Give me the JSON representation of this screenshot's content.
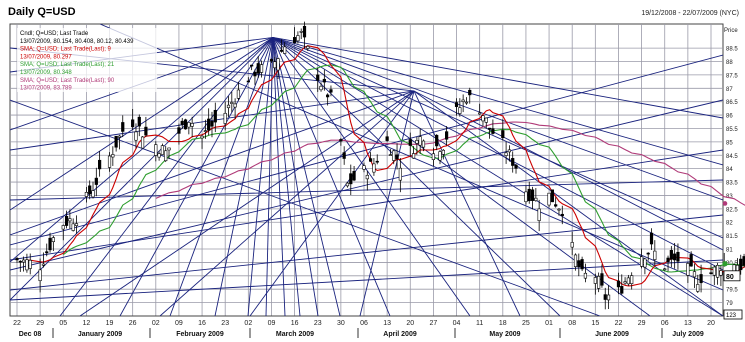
{
  "header": {
    "title": "Daily Q=USD",
    "date_range": "19/12/2008 - 22/07/2009 (NYC)"
  },
  "legend": [
    {
      "label": "Cndl; Q=USD; Last Trade",
      "color": "#000000"
    },
    {
      "label": "13/07/2009, 80.154, 80.408, 80.12, 80.439",
      "color": "#000000"
    },
    {
      "label": "SMA; Q=USD; Last Trade(Last); 9",
      "color": "#cc0000"
    },
    {
      "label": "13/07/2009, 80.297",
      "color": "#cc0000"
    },
    {
      "label": "SMA; Q=USD; Last Trade(Last); 21",
      "color": "#2e9e2e"
    },
    {
      "label": "13/07/2009, 80.348",
      "color": "#2e9e2e"
    },
    {
      "label": "SMA; Q=USD; Last Trade(Last); 90",
      "color": "#b03a78"
    },
    {
      "label": "13/07/2009, 83.789",
      "color": "#b03a78"
    }
  ],
  "colors": {
    "candle": "#000000",
    "sma9": "#cc0000",
    "sma21": "#2e9e2e",
    "sma90": "#b03a78",
    "fan_lines": "#1a237e",
    "grid": "#9a9aa8",
    "background": "#ffffff"
  },
  "chart_data": {
    "type": "candlestick",
    "title": "Daily Q=USD",
    "ylabel": "Price",
    "y_unit": "Price",
    "ylim": [
      78.5,
      89.4
    ],
    "grid": true,
    "y_ticks": [
      "79",
      "79.5",
      "80",
      "80.5",
      "81",
      "81.5",
      "82",
      "82.5",
      "83",
      "83.5",
      "84",
      "84.5",
      "85",
      "85.5",
      "86",
      "86.5",
      "87",
      "87.5",
      "88",
      "88.5"
    ],
    "x_ticks": [
      "22",
      "29",
      "05",
      "12",
      "19",
      "26",
      "02",
      "09",
      "16",
      "23",
      "02",
      "09",
      "16",
      "23",
      "30",
      "06",
      "13",
      "20",
      "27",
      "04",
      "11",
      "18",
      "25",
      "01",
      "08",
      "15",
      "22",
      "29",
      "06",
      "13",
      "20"
    ],
    "month_labels": [
      "Dec 08",
      "January 2009",
      "February 2009",
      "March 2009",
      "April 2009",
      "May 2009",
      "June 2009",
      "July 2009"
    ],
    "last_value": "80",
    "scale_badge": "123",
    "series": [
      {
        "name": "SMA; Q=USD; Last Trade(Last); 9",
        "last": 80.297
      },
      {
        "name": "SMA; Q=USD; Last Trade(Last); 21",
        "last": 80.348
      },
      {
        "name": "SMA; Q=USD; Last Trade(Last); 90",
        "last": 83.789
      }
    ],
    "last_candle": {
      "date": "13/07/2009",
      "open": 80.154,
      "high": 80.408,
      "low": 80.12,
      "close": 80.439
    },
    "anchors": [
      {
        "d": 0,
        "v": 80.6
      },
      {
        "d": 7,
        "v": 80.4
      },
      {
        "d": 13,
        "v": 81.9
      },
      {
        "d": 18,
        "v": 82.2
      },
      {
        "d": 27,
        "v": 84.2
      },
      {
        "d": 34,
        "v": 85.9
      },
      {
        "d": 40,
        "v": 85.1
      },
      {
        "d": 45,
        "v": 84.6
      },
      {
        "d": 52,
        "v": 85.9
      },
      {
        "d": 56,
        "v": 85.2
      },
      {
        "d": 63,
        "v": 86.1
      },
      {
        "d": 71,
        "v": 87.6
      },
      {
        "d": 77,
        "v": 87.8
      },
      {
        "d": 82,
        "v": 88.8
      },
      {
        "d": 86,
        "v": 89.0
      },
      {
        "d": 92,
        "v": 87.2
      },
      {
        "d": 95,
        "v": 86.6
      },
      {
        "d": 98,
        "v": 85.0
      },
      {
        "d": 100,
        "v": 83.4
      },
      {
        "d": 104,
        "v": 83.8
      },
      {
        "d": 108,
        "v": 84.2
      },
      {
        "d": 112,
        "v": 85.0
      },
      {
        "d": 116,
        "v": 84.2
      },
      {
        "d": 123,
        "v": 85.3
      },
      {
        "d": 126,
        "v": 84.8
      },
      {
        "d": 129,
        "v": 84.9
      },
      {
        "d": 133,
        "v": 86.1
      },
      {
        "d": 136,
        "v": 86.7
      },
      {
        "d": 140,
        "v": 86.3
      },
      {
        "d": 143,
        "v": 85.5
      },
      {
        "d": 147,
        "v": 84.9
      },
      {
        "d": 151,
        "v": 84.1
      },
      {
        "d": 154,
        "v": 83.2
      },
      {
        "d": 158,
        "v": 82.7
      },
      {
        "d": 161,
        "v": 83.0
      },
      {
        "d": 165,
        "v": 82.5
      },
      {
        "d": 168,
        "v": 81.0
      },
      {
        "d": 171,
        "v": 80.0
      },
      {
        "d": 175,
        "v": 80.0
      },
      {
        "d": 178,
        "v": 79.2
      },
      {
        "d": 182,
        "v": 79.4
      },
      {
        "d": 186,
        "v": 80.2
      },
      {
        "d": 189,
        "v": 80.8
      },
      {
        "d": 192,
        "v": 81.0
      },
      {
        "d": 196,
        "v": 80.4
      },
      {
        "d": 200,
        "v": 80.6
      },
      {
        "d": 203,
        "v": 80.2
      },
      {
        "d": 206,
        "v": 79.9
      },
      {
        "d": 210,
        "v": 80.1
      },
      {
        "d": 213,
        "v": 80.4
      },
      {
        "d": 216,
        "v": 80.6
      },
      {
        "d": 220,
        "v": 80.3
      },
      {
        "d": 224,
        "v": 80.4
      }
    ]
  }
}
